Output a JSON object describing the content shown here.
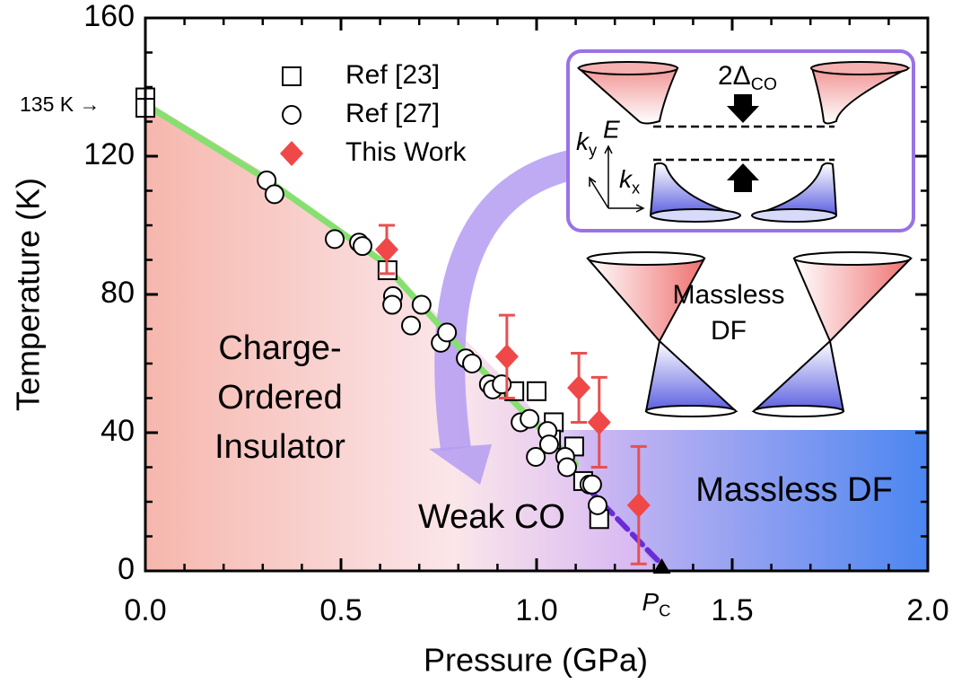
{
  "chart_data": {
    "type": "scatter",
    "x_label": "Pressure (GPa)",
    "y_label": "Temperature (K)",
    "xlim": [
      0,
      2
    ],
    "ylim": [
      0,
      160
    ],
    "xticks": [
      {
        "value": 0,
        "label": "0.0"
      },
      {
        "value": 0.5,
        "label": "0.5"
      },
      {
        "value": 1,
        "label": "1.0"
      },
      {
        "value": 1.5,
        "label": "1.5"
      },
      {
        "value": 2,
        "label": "2.0"
      }
    ],
    "yticks": [
      0,
      40,
      80,
      120,
      160
    ],
    "series": [
      {
        "name": "Ref [23]",
        "marker": "square",
        "color": "#000000",
        "x": [
          0,
          0,
          0.619,
          0.943,
          1.0,
          1.044,
          1.037,
          1.096,
          1.119,
          1.16
        ],
        "y": [
          137,
          134,
          87,
          52,
          52,
          43,
          38,
          36,
          26,
          15
        ]
      },
      {
        "name": "Ref [27]",
        "marker": "circle",
        "color": "#000000",
        "x": [
          0.31,
          0.33,
          0.484,
          0.546,
          0.555,
          0.633,
          0.631,
          0.679,
          0.706,
          0.755,
          0.771,
          0.819,
          0.835,
          0.878,
          0.888,
          0.911,
          0.959,
          0.982,
          0.998,
          1.028,
          1.032,
          1.073,
          1.078,
          1.135,
          1.142,
          1.156
        ],
        "y": [
          113,
          109,
          96,
          95,
          94,
          79.5,
          77,
          71,
          77,
          66,
          69,
          61.5,
          60,
          54,
          52.5,
          54,
          43,
          44,
          33,
          40.5,
          36.6,
          33,
          30,
          25,
          25,
          19
        ]
      },
      {
        "name": "This Work",
        "marker": "diamond",
        "color": "#f04848",
        "x": [
          0.617,
          0.924,
          1.108,
          1.16,
          1.261
        ],
        "y": [
          93,
          62,
          53,
          43,
          19
        ],
        "errors": [
          7,
          12,
          10,
          13,
          17
        ]
      }
    ],
    "guide_lines": [
      {
        "color": "#86e070",
        "dashed": false,
        "x": [
          0,
          0.3,
          0.6,
          0.8,
          0.95,
          1.1
        ],
        "y": [
          135,
          114,
          90,
          65,
          48,
          31
        ]
      },
      {
        "color": "#6a2bd8",
        "dashed": true,
        "x": [
          1.13,
          1.31
        ],
        "y": [
          24,
          3
        ]
      }
    ],
    "critical_point": {
      "x": 1.32,
      "y": 0,
      "label": "P",
      "label_sub": "C"
    },
    "annotations": {
      "start_label": "135 K →",
      "co_region": [
        "Charge-",
        "Ordered",
        "Insulator"
      ],
      "weak_co": "Weak CO",
      "massless_region": "Massless DF"
    },
    "inset": {
      "gap": "2Δ",
      "gap_sub": "CO",
      "energy": "E",
      "ky": "k",
      "ky_sub": "y",
      "kx": "k",
      "kx_sub": "x",
      "massless": [
        "Massless",
        "DF"
      ]
    }
  }
}
